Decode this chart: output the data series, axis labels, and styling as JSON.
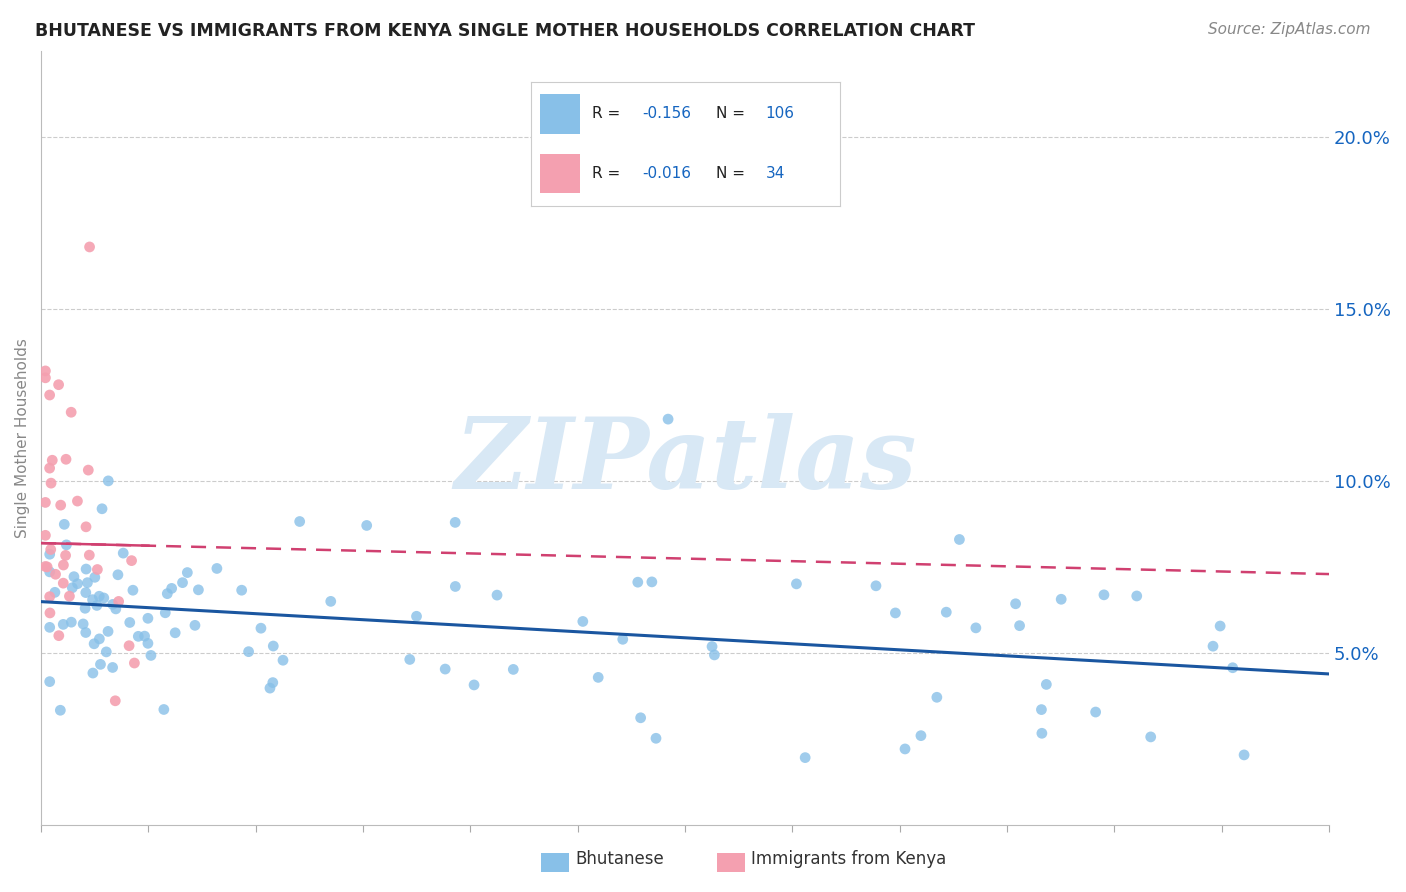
{
  "title": "BHUTANESE VS IMMIGRANTS FROM KENYA SINGLE MOTHER HOUSEHOLDS CORRELATION CHART",
  "source": "Source: ZipAtlas.com",
  "ylabel": "Single Mother Households",
  "yticks": [
    0.05,
    0.1,
    0.15,
    0.2
  ],
  "ytick_labels": [
    "5.0%",
    "10.0%",
    "15.0%",
    "20.0%"
  ],
  "xlim": [
    0.0,
    0.6
  ],
  "ylim": [
    0.0,
    0.225
  ],
  "blue_color": "#88C0E8",
  "pink_color": "#F4A0B0",
  "trend_blue": "#1a56a0",
  "trend_pink": "#d04070",
  "watermark_color": "#d8e8f5",
  "series1_label": "Bhutanese",
  "series2_label": "Immigrants from Kenya",
  "blue_R": "-0.156",
  "blue_N": "106",
  "pink_R": "-0.016",
  "pink_N": "34",
  "trend_blue_x0": 0.0,
  "trend_blue_y0": 0.065,
  "trend_blue_x1": 0.6,
  "trend_blue_y1": 0.044,
  "trend_pink_x0": 0.0,
  "trend_pink_y0": 0.082,
  "trend_pink_x1": 0.6,
  "trend_pink_y1": 0.073
}
